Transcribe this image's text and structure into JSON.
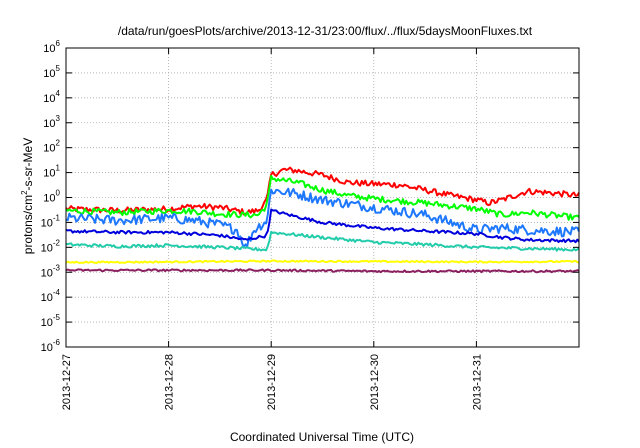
{
  "chart_data": {
    "type": "line",
    "title": "/data/run/goesPlots/archive/2013-12-31/23:00/flux/../flux/5daysMoonFluxes.txt",
    "xlabel": "Coordinated Universal Time (UTC)",
    "ylabel": {
      "base": "protons/cm",
      "sup": "2",
      "rest": "-s-sr-MeV"
    },
    "y_scale": "log",
    "ylim": [
      1e-06,
      1000000.0
    ],
    "y_ticks": [
      {
        "value": 1e-06,
        "base": "10",
        "exp": "-6"
      },
      {
        "value": 1e-05,
        "base": "10",
        "exp": "-5"
      },
      {
        "value": 0.0001,
        "base": "10",
        "exp": "-4"
      },
      {
        "value": 0.001,
        "base": "10",
        "exp": "-3"
      },
      {
        "value": 0.01,
        "base": "10",
        "exp": "-2"
      },
      {
        "value": 0.1,
        "base": "10",
        "exp": "-1"
      },
      {
        "value": 1,
        "base": "10",
        "exp": "0"
      },
      {
        "value": 10,
        "base": "10",
        "exp": "1"
      },
      {
        "value": 100,
        "base": "10",
        "exp": "2"
      },
      {
        "value": 1000,
        "base": "10",
        "exp": "3"
      },
      {
        "value": 10000,
        "base": "10",
        "exp": "4"
      },
      {
        "value": 100000,
        "base": "10",
        "exp": "5"
      },
      {
        "value": 1000000,
        "base": "10",
        "exp": "6"
      }
    ],
    "xlim": [
      "2013-12-27",
      "2014-01-01"
    ],
    "x_ticks": [
      "2013-12-27",
      "2013-12-28",
      "2013-12-29",
      "2013-12-30",
      "2013-12-31"
    ],
    "grid": true,
    "legend": "none",
    "series": [
      {
        "color": "#ff0000",
        "noise": 0.12,
        "x": [
          "2013-12-27",
          "2013-12-27T12:00",
          "2013-12-28",
          "2013-12-28T06:00",
          "2013-12-28T12:00",
          "2013-12-28T18:00",
          "2013-12-28T21:00",
          "2013-12-28T23:00",
          "2013-12-29",
          "2013-12-29T03:00",
          "2013-12-29T06:00",
          "2013-12-29T12:00",
          "2013-12-29T18:00",
          "2013-12-30",
          "2013-12-30T06:00",
          "2013-12-30T12:00",
          "2013-12-30T18:00",
          "2013-12-31",
          "2013-12-31T03:00",
          "2013-12-31T06:00",
          "2013-12-31T12:00",
          "2013-12-31T18:00",
          "2014-01-01"
        ],
        "y": [
          0.35,
          0.3,
          0.35,
          0.45,
          0.4,
          0.25,
          0.3,
          0.8,
          8,
          13,
          12,
          8,
          4,
          3.5,
          3.2,
          2,
          1.2,
          0.8,
          0.6,
          0.8,
          1.8,
          1.5,
          1.2
        ]
      },
      {
        "color": "#00ff00",
        "noise": 0.12,
        "x": [
          "2013-12-27",
          "2013-12-27T12:00",
          "2013-12-28",
          "2013-12-28T06:00",
          "2013-12-28T12:00",
          "2013-12-28T18:00",
          "2013-12-28T21:00",
          "2013-12-28T23:00",
          "2013-12-29",
          "2013-12-29T06:00",
          "2013-12-29T12:00",
          "2013-12-29T18:00",
          "2013-12-30",
          "2013-12-30T12:00",
          "2013-12-31",
          "2013-12-31T06:00",
          "2013-12-31T12:00",
          "2014-01-01"
        ],
        "y": [
          0.3,
          0.25,
          0.3,
          0.28,
          0.22,
          0.2,
          0.2,
          0.5,
          6,
          4,
          2,
          1.2,
          0.9,
          0.6,
          0.35,
          0.2,
          0.25,
          0.15
        ]
      },
      {
        "color": "#1e78ff",
        "noise": 0.2,
        "x": [
          "2013-12-27",
          "2013-12-27T12:00",
          "2013-12-28",
          "2013-12-28T06:00",
          "2013-12-28T12:00",
          "2013-12-28T16:00",
          "2013-12-28T18:00",
          "2013-12-28T20:00",
          "2013-12-28T23:00",
          "2013-12-29",
          "2013-12-29T06:00",
          "2013-12-29T12:00",
          "2013-12-30",
          "2013-12-30T12:00",
          "2013-12-31",
          "2013-12-31T06:00",
          "2013-12-31T12:00",
          "2014-01-01"
        ],
        "y": [
          0.15,
          0.12,
          0.15,
          0.12,
          0.08,
          0.05,
          0.01,
          0.05,
          0.12,
          2,
          1.4,
          0.8,
          0.4,
          0.2,
          0.05,
          0.06,
          0.05,
          0.04
        ]
      },
      {
        "color": "#0000dd",
        "noise": 0.06,
        "x": [
          "2013-12-27",
          "2013-12-27T12:00",
          "2013-12-28",
          "2013-12-28T06:00",
          "2013-12-28T12:00",
          "2013-12-28T18:00",
          "2013-12-28T23:00",
          "2013-12-29",
          "2013-12-29T06:00",
          "2013-12-29T12:00",
          "2013-12-30",
          "2013-12-30T12:00",
          "2013-12-31",
          "2013-12-31T06:00",
          "2013-12-31T12:00",
          "2014-01-01"
        ],
        "y": [
          0.045,
          0.04,
          0.04,
          0.035,
          0.03,
          0.02,
          0.03,
          0.3,
          0.17,
          0.1,
          0.06,
          0.045,
          0.035,
          0.025,
          0.02,
          0.018
        ]
      },
      {
        "color": "#22ccaa",
        "noise": 0.06,
        "x": [
          "2013-12-27",
          "2013-12-27T12:00",
          "2013-12-28",
          "2013-12-28T12:00",
          "2013-12-28T23:00",
          "2013-12-29",
          "2013-12-29T12:00",
          "2013-12-30",
          "2013-12-30T12:00",
          "2013-12-31",
          "2013-12-31T12:00",
          "2014-01-01"
        ],
        "y": [
          0.013,
          0.011,
          0.012,
          0.01,
          0.008,
          0.04,
          0.025,
          0.016,
          0.013,
          0.01,
          0.009,
          0.008
        ]
      },
      {
        "color": "#ffff00",
        "noise": 0.03,
        "x": [
          "2013-12-27",
          "2013-12-28",
          "2013-12-29",
          "2013-12-30",
          "2013-12-31",
          "2014-01-01"
        ],
        "y": [
          0.0025,
          0.0026,
          0.0028,
          0.0027,
          0.0026,
          0.0027
        ]
      },
      {
        "color": "#8b2060",
        "noise": 0.04,
        "x": [
          "2013-12-27",
          "2013-12-28",
          "2013-12-29",
          "2013-12-30",
          "2013-12-31",
          "2014-01-01"
        ],
        "y": [
          0.0012,
          0.0012,
          0.0012,
          0.0011,
          0.0011,
          0.0011
        ]
      }
    ]
  }
}
